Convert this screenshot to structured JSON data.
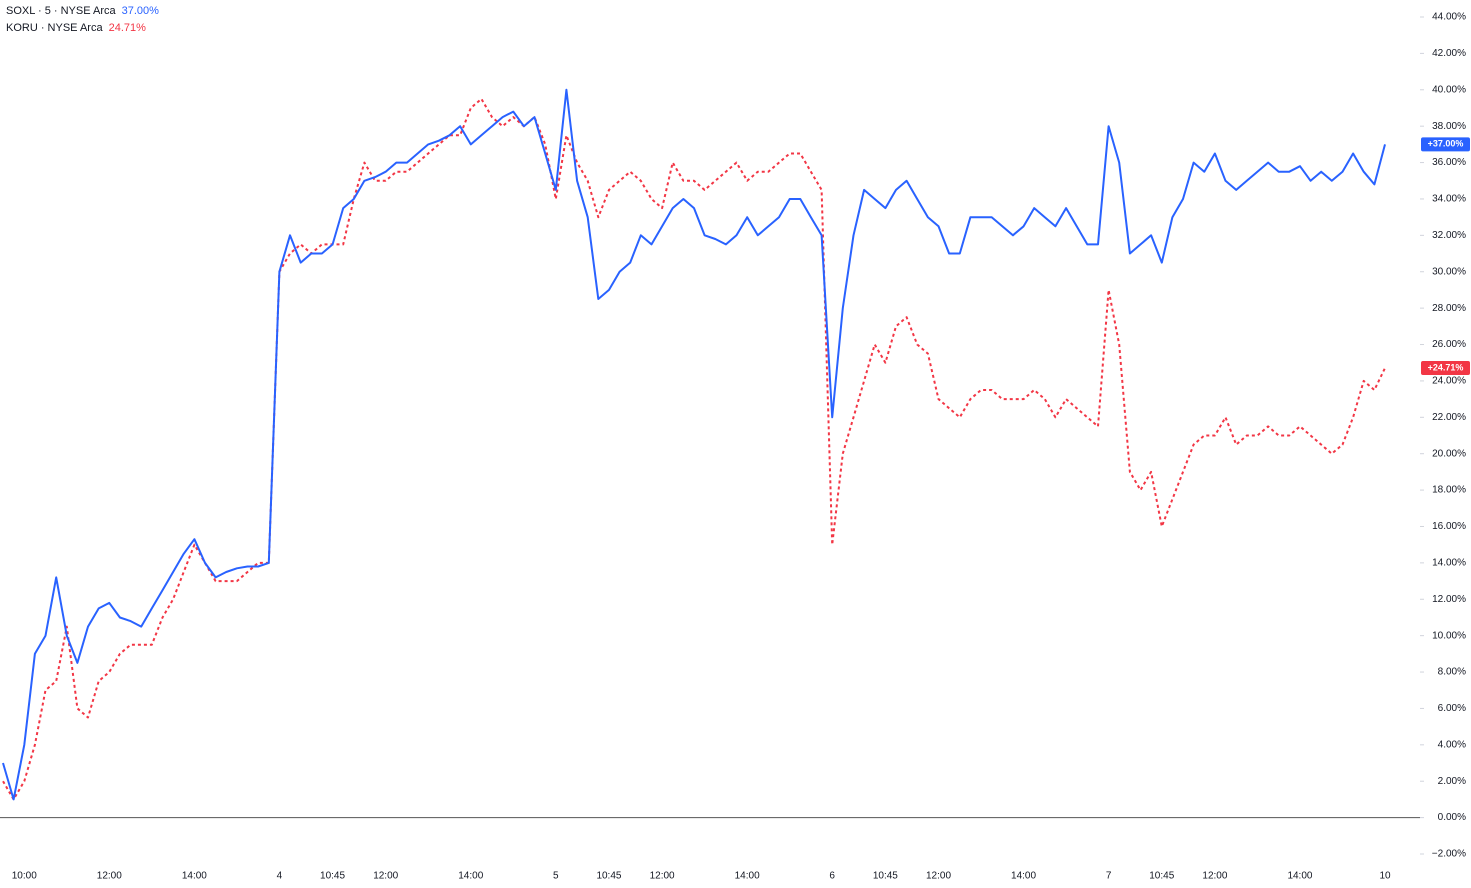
{
  "chart_data": {
    "type": "line",
    "categories": [
      null,
      null,
      "10:00",
      null,
      null,
      null,
      null,
      null,
      null,
      null,
      "12:00",
      null,
      null,
      null,
      null,
      null,
      null,
      null,
      "14:00",
      null,
      null,
      null,
      null,
      null,
      null,
      null,
      "4",
      null,
      null,
      null,
      null,
      "10:45",
      null,
      null,
      null,
      null,
      "12:00",
      null,
      null,
      null,
      null,
      null,
      null,
      null,
      "14:00",
      null,
      null,
      null,
      null,
      null,
      null,
      null,
      "5",
      null,
      null,
      null,
      null,
      "10:45",
      null,
      null,
      null,
      null,
      "12:00",
      null,
      null,
      null,
      null,
      null,
      null,
      null,
      "14:00",
      null,
      null,
      null,
      null,
      null,
      null,
      null,
      "6",
      null,
      null,
      null,
      null,
      "10:45",
      null,
      null,
      null,
      null,
      "12:00",
      null,
      null,
      null,
      null,
      null,
      null,
      null,
      "14:00",
      null,
      null,
      null,
      null,
      null,
      null,
      null,
      "7",
      null,
      null,
      null,
      null,
      "10:45",
      null,
      null,
      null,
      null,
      "12:00",
      null,
      null,
      null,
      null,
      null,
      null,
      null,
      "14:00",
      null,
      null,
      null,
      null,
      null,
      null,
      null,
      "10"
    ],
    "series": [
      {
        "name": "KORU · NYSE Arca",
        "value_label": "24.71%",
        "badge": "+24.71%",
        "color": "#f23645",
        "dashed": true,
        "values": [
          2.0,
          1.0,
          2.0,
          4.0,
          7.0,
          7.5,
          10.5,
          6.0,
          5.5,
          7.5,
          8.0,
          9.0,
          9.5,
          9.5,
          9.5,
          11.0,
          12.0,
          13.5,
          15.0,
          14.0,
          13.0,
          13.0,
          13.0,
          13.5,
          14.0,
          14.0,
          30.0,
          31.0,
          31.5,
          31.0,
          31.5,
          31.5,
          31.5,
          34.0,
          36.0,
          35.0,
          35.0,
          35.5,
          35.5,
          36.0,
          36.5,
          37.0,
          37.5,
          37.5,
          39.0,
          39.5,
          38.5,
          38.0,
          38.5,
          38.0,
          38.5,
          37.0,
          34.0,
          37.5,
          36.0,
          35.0,
          33.0,
          34.5,
          35.0,
          35.5,
          35.0,
          34.0,
          33.5,
          36.0,
          35.0,
          35.0,
          34.5,
          35.0,
          35.5,
          36.0,
          35.0,
          35.5,
          35.5,
          36.0,
          36.5,
          36.5,
          35.5,
          34.5,
          15.0,
          20.0,
          22.0,
          24.0,
          26.0,
          25.0,
          27.0,
          27.5,
          26.0,
          25.5,
          23.0,
          22.5,
          22.0,
          23.0,
          23.5,
          23.5,
          23.0,
          23.0,
          23.0,
          23.5,
          23.0,
          22.0,
          23.0,
          22.5,
          22.0,
          21.5,
          29.0,
          26.0,
          19.0,
          18.0,
          19.0,
          16.0,
          17.5,
          19.0,
          20.5,
          21.0,
          21.0,
          22.0,
          20.5,
          21.0,
          21.0,
          21.5,
          21.0,
          21.0,
          21.5,
          21.0,
          20.5,
          20.0,
          20.5,
          22.0,
          24.0,
          23.5,
          24.71
        ]
      },
      {
        "name": "SOXL · 5 · NYSE Arca",
        "value_label": "37.00%",
        "badge": "+37.00%",
        "color": "#2962ff",
        "dashed": false,
        "values": [
          3.0,
          1.0,
          4.0,
          9.0,
          10.0,
          13.2,
          10.0,
          8.5,
          10.5,
          11.5,
          11.8,
          11.0,
          10.8,
          10.5,
          11.5,
          12.5,
          13.5,
          14.5,
          15.3,
          14.0,
          13.2,
          13.5,
          13.7,
          13.8,
          13.8,
          14.0,
          30.0,
          32.0,
          30.5,
          31.0,
          31.0,
          31.5,
          33.5,
          34.0,
          35.0,
          35.2,
          35.5,
          36.0,
          36.0,
          36.5,
          37.0,
          37.2,
          37.5,
          38.0,
          37.0,
          37.5,
          38.0,
          38.5,
          38.8,
          38.0,
          38.5,
          36.5,
          34.5,
          40.0,
          35.0,
          33.0,
          28.5,
          29.0,
          30.0,
          30.5,
          32.0,
          31.5,
          32.5,
          33.5,
          34.0,
          33.5,
          32.0,
          31.8,
          31.5,
          32.0,
          33.0,
          32.0,
          32.5,
          33.0,
          34.0,
          34.0,
          33.0,
          32.0,
          22.0,
          28.0,
          32.0,
          34.5,
          34.0,
          33.5,
          34.5,
          35.0,
          34.0,
          33.0,
          32.5,
          31.0,
          31.0,
          33.0,
          33.0,
          33.0,
          32.5,
          32.0,
          32.5,
          33.5,
          33.0,
          32.5,
          33.5,
          32.5,
          31.5,
          31.5,
          38.0,
          36.0,
          31.0,
          31.5,
          32.0,
          30.5,
          33.0,
          34.0,
          36.0,
          35.5,
          36.5,
          35.0,
          34.5,
          35.0,
          35.5,
          36.0,
          35.5,
          35.5,
          35.8,
          35.0,
          35.5,
          35.0,
          35.5,
          36.5,
          35.5,
          34.8,
          37.0
        ]
      }
    ],
    "legend_order": [
      1,
      0
    ],
    "ylim": [
      -2,
      44
    ],
    "yticks": [
      {
        "value": -2,
        "label": "−2.00%"
      },
      {
        "value": 0,
        "label": "0.00%"
      },
      {
        "value": 2,
        "label": "2.00%"
      },
      {
        "value": 4,
        "label": "4.00%"
      },
      {
        "value": 6,
        "label": "6.00%"
      },
      {
        "value": 8,
        "label": "8.00%"
      },
      {
        "value": 10,
        "label": "10.00%"
      },
      {
        "value": 12,
        "label": "12.00%"
      },
      {
        "value": 14,
        "label": "14.00%"
      },
      {
        "value": 16,
        "label": "16.00%"
      },
      {
        "value": 18,
        "label": "18.00%"
      },
      {
        "value": 20,
        "label": "20.00%"
      },
      {
        "value": 22,
        "label": "22.00%"
      },
      {
        "value": 24,
        "label": "24.00%"
      },
      {
        "value": 26,
        "label": "26.00%"
      },
      {
        "value": 28,
        "label": "28.00%"
      },
      {
        "value": 30,
        "label": "30.00%"
      },
      {
        "value": 32,
        "label": "32.00%"
      },
      {
        "value": 34,
        "label": "34.00%"
      },
      {
        "value": 36,
        "label": "36.00%"
      },
      {
        "value": 38,
        "label": "38.00%"
      },
      {
        "value": 40,
        "label": "40.00%"
      },
      {
        "value": 42,
        "label": "42.00%"
      },
      {
        "value": 44,
        "label": "44.00%"
      }
    ],
    "grid": false
  }
}
